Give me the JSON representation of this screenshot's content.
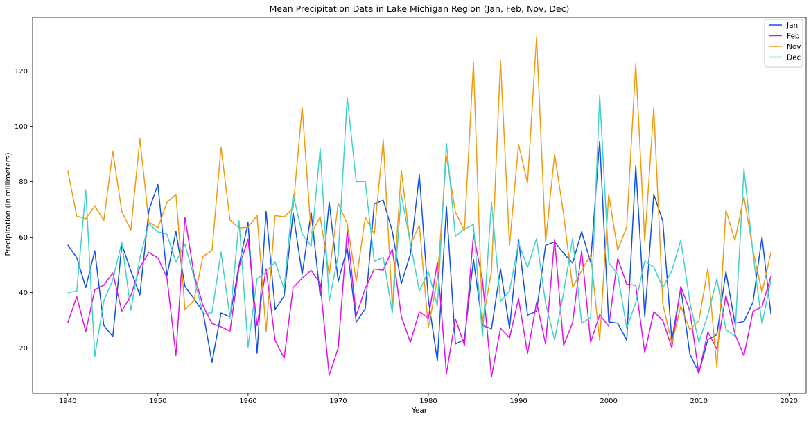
{
  "chart_data": {
    "type": "line",
    "title": "Mean Precipitation Data in Lake Michigan Region (Jan, Feb, Nov, Dec)",
    "xlabel": "Year",
    "ylabel": "Precipitation (in millimeters)",
    "xlim": [
      1936.1,
      2021.9
    ],
    "ylim": [
      3.6,
      139.4
    ],
    "xticks": [
      1940,
      1950,
      1960,
      1970,
      1980,
      1990,
      2000,
      2010,
      2020
    ],
    "yticks": [
      20,
      40,
      60,
      80,
      100,
      120
    ],
    "grid": false,
    "legend_position": "top-right",
    "x": [
      1940,
      1941,
      1942,
      1943,
      1944,
      1945,
      1946,
      1947,
      1948,
      1949,
      1950,
      1951,
      1952,
      1953,
      1954,
      1955,
      1956,
      1957,
      1958,
      1959,
      1960,
      1961,
      1962,
      1963,
      1964,
      1965,
      1966,
      1967,
      1968,
      1969,
      1970,
      1971,
      1972,
      1973,
      1974,
      1975,
      1976,
      1977,
      1978,
      1979,
      1980,
      1981,
      1982,
      1983,
      1984,
      1985,
      1986,
      1987,
      1988,
      1989,
      1990,
      1991,
      1992,
      1993,
      1994,
      1995,
      1996,
      1997,
      1998,
      1999,
      2000,
      2001,
      2002,
      2003,
      2004,
      2005,
      2006,
      2007,
      2008,
      2009,
      2010,
      2011,
      2012,
      2013,
      2014,
      2015,
      2016,
      2017,
      2018
    ],
    "series": [
      {
        "name": "Jan",
        "color": "#1050e8",
        "values": [
          57.2,
          52.6,
          41.8,
          55.1,
          28.1,
          24.1,
          57.4,
          47.8,
          39.1,
          69.7,
          79.0,
          46.0,
          62.1,
          42.2,
          37.8,
          33.0,
          14.8,
          32.6,
          31.2,
          49.9,
          65.3,
          18.1,
          69.4,
          33.9,
          38.7,
          68.8,
          46.6,
          68.9,
          38.8,
          72.6,
          44.0,
          56.1,
          29.3,
          34.2,
          72.0,
          73.3,
          62.1,
          43.2,
          53.8,
          82.5,
          37.4,
          15.3,
          71.1,
          21.4,
          23.0,
          52.0,
          28.1,
          26.9,
          48.6,
          27.0,
          59.2,
          31.8,
          33.3,
          57.0,
          58.3,
          54.2,
          50.6,
          62.0,
          50.9,
          94.8,
          29.4,
          28.9,
          22.8,
          85.8,
          31.2,
          75.5,
          65.8,
          22.8,
          41.6,
          17.8,
          11.0,
          23.0,
          24.8,
          47.6,
          28.9,
          29.5,
          36.5,
          60.1,
          32.0
        ]
      },
      {
        "name": "Feb",
        "color": "#e010e8",
        "values": [
          29.1,
          38.5,
          25.9,
          41.0,
          42.7,
          47.1,
          33.3,
          38.9,
          49.1,
          54.5,
          52.5,
          45.5,
          17.3,
          67.2,
          46.6,
          35.3,
          28.8,
          27.6,
          26.1,
          49.2,
          59.3,
          28.0,
          48.6,
          22.7,
          16.3,
          41.8,
          45.2,
          48.0,
          43.3,
          10.1,
          20.0,
          62.5,
          31.7,
          41.5,
          48.5,
          48.1,
          55.7,
          31.4,
          22.0,
          33.1,
          30.7,
          51.0,
          10.7,
          30.5,
          20.9,
          61.0,
          44.6,
          9.5,
          27.1,
          23.6,
          37.8,
          18.0,
          36.5,
          21.4,
          59.2,
          20.9,
          29.1,
          55.1,
          22.0,
          32.0,
          27.8,
          52.4,
          43.0,
          42.6,
          18.2,
          33.1,
          29.9,
          20.1,
          42.2,
          33.4,
          10.8,
          25.8,
          19.6,
          39.0,
          25.0,
          17.2,
          33.2,
          34.9,
          45.9
        ]
      },
      {
        "name": "Nov",
        "color": "#f09a10",
        "values": [
          84.0,
          67.6,
          66.6,
          71.3,
          66.0,
          91.0,
          69.2,
          62.6,
          95.5,
          65.4,
          63.4,
          72.5,
          75.5,
          33.8,
          37.1,
          53.1,
          55.1,
          92.4,
          66.2,
          63.3,
          63.6,
          67.8,
          25.9,
          67.8,
          67.3,
          70.5,
          107.0,
          61.3,
          67.3,
          46.6,
          72.2,
          64.8,
          44.1,
          67.2,
          61.2,
          95.1,
          34.9,
          84.1,
          57.3,
          64.3,
          27.3,
          44.8,
          89.3,
          69.0,
          62.4,
          123.1,
          29.2,
          47.6,
          123.7,
          57.0,
          93.5,
          79.5,
          132.4,
          58.1,
          90.0,
          68.3,
          41.8,
          47.9,
          53.6,
          22.6,
          75.5,
          55.2,
          63.8,
          122.7,
          58.4,
          106.8,
          36.0,
          21.5,
          35.2,
          26.5,
          29.8,
          48.8,
          12.8,
          69.8,
          58.8,
          74.7,
          55.3,
          40.0,
          54.6
        ]
      },
      {
        "name": "Dec",
        "color": "#40d0c8",
        "values": [
          40.0,
          40.5,
          77.0,
          16.9,
          37.0,
          44.6,
          58.2,
          33.6,
          52.5,
          64.9,
          61.9,
          61.1,
          51.0,
          57.5,
          45.7,
          32.3,
          32.7,
          54.6,
          30.8,
          65.9,
          20.3,
          45.0,
          47.4,
          51.1,
          41.3,
          75.5,
          61.2,
          56.8,
          92.0,
          37.0,
          53.4,
          110.5,
          80.0,
          80.1,
          51.3,
          52.7,
          32.7,
          75.3,
          57.9,
          40.6,
          47.6,
          35.2,
          94.0,
          60.3,
          62.9,
          64.6,
          24.3,
          72.6,
          36.8,
          40.6,
          58.0,
          49.1,
          59.5,
          36.1,
          22.9,
          40.0,
          59.6,
          28.9,
          31.0,
          111.3,
          50.9,
          46.6,
          27.1,
          36.4,
          51.4,
          49.2,
          41.7,
          47.9,
          58.9,
          36.6,
          22.0,
          31.9,
          45.0,
          26.6,
          24.3,
          84.7,
          54.2,
          28.6,
          44.5
        ]
      }
    ]
  }
}
